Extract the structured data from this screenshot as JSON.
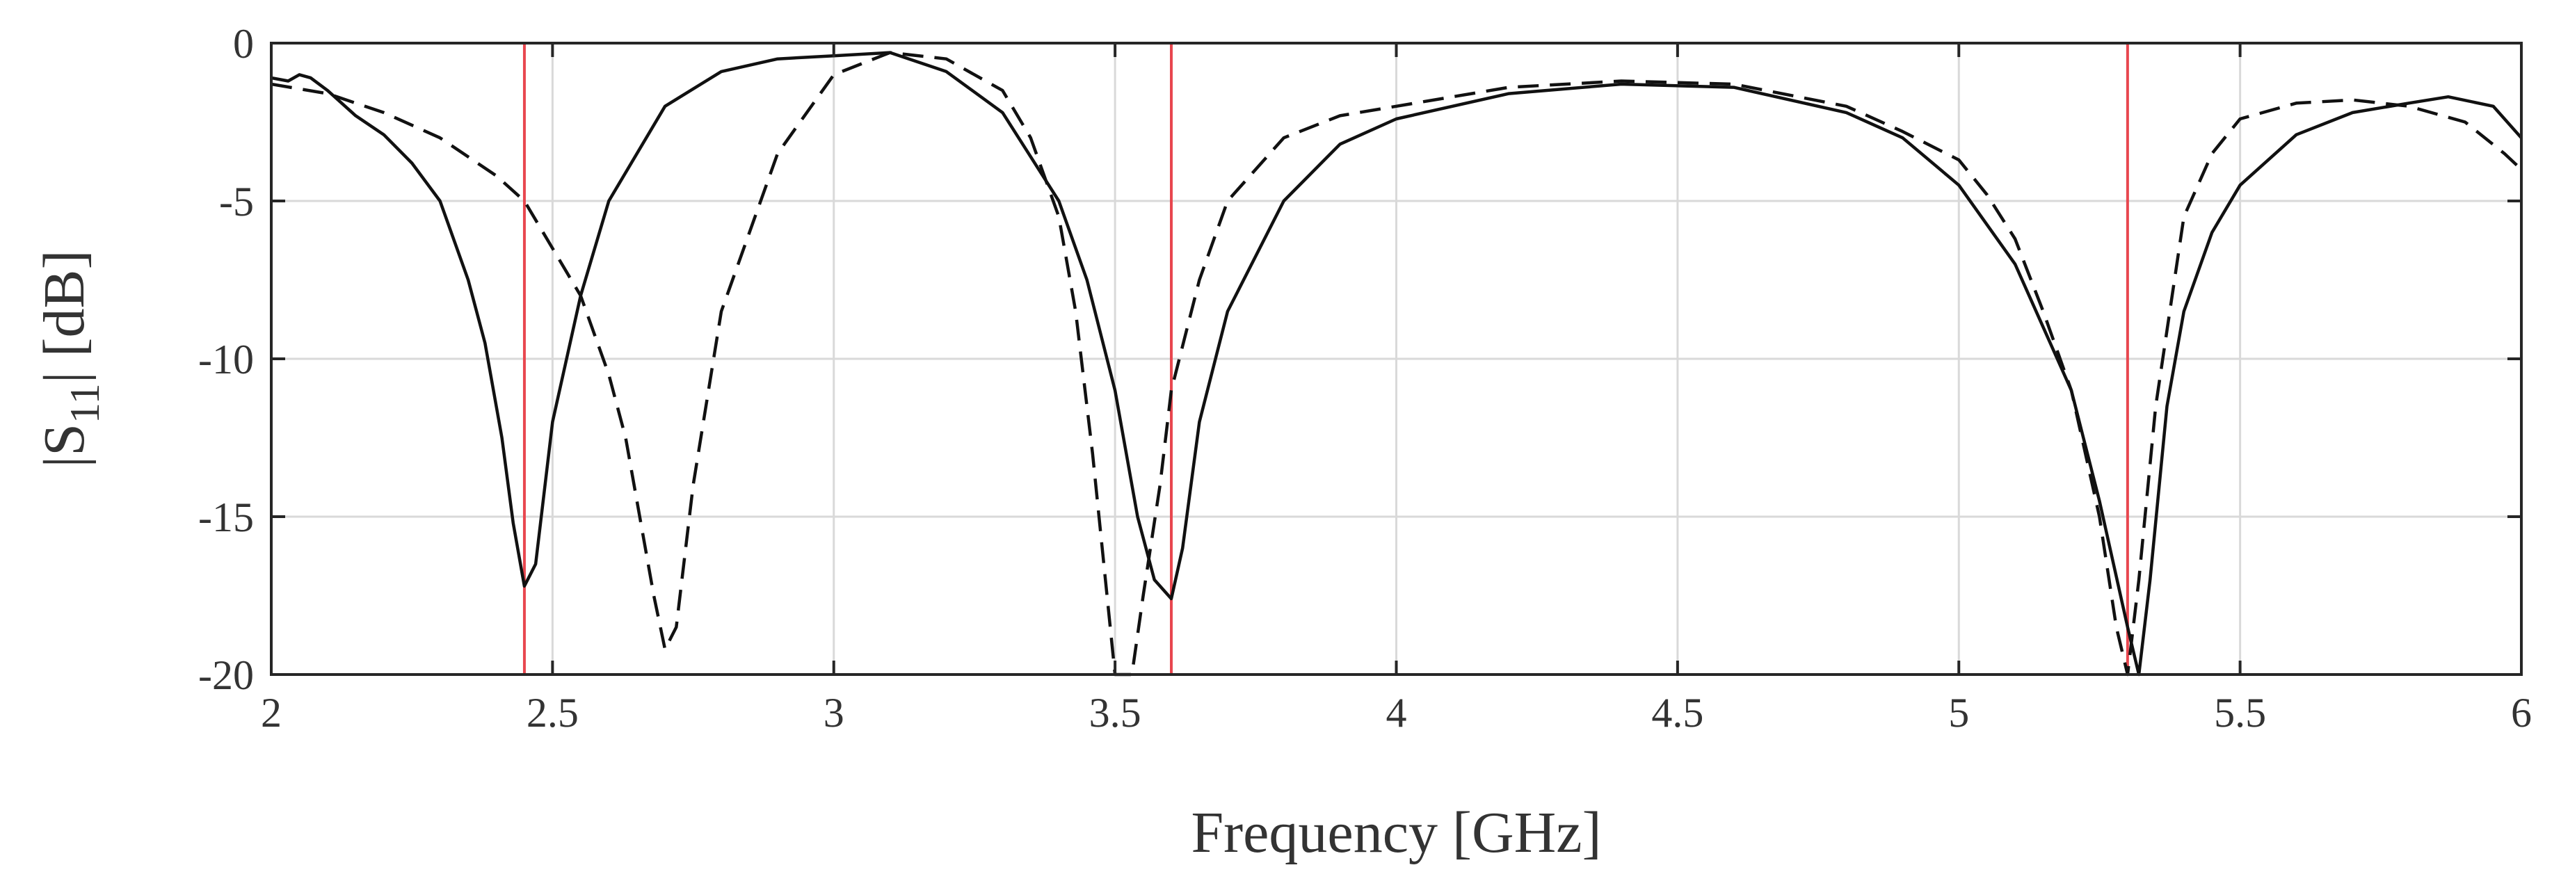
{
  "chart_data": {
    "type": "line",
    "title": "",
    "xlabel": "Frequency [GHz]",
    "ylabel": {
      "pre": "|S",
      "sub": "11",
      "post": "| [dB]"
    },
    "xlim": [
      2,
      6
    ],
    "ylim": [
      -20,
      0
    ],
    "xticks": [
      2,
      2.5,
      3,
      3.5,
      4,
      4.5,
      5,
      5.5,
      6
    ],
    "xtick_labels": [
      "2",
      "2.5",
      "3",
      "3.5",
      "4",
      "4.5",
      "5",
      "5.5",
      "6"
    ],
    "yticks": [
      0,
      -5,
      -10,
      -15,
      -20
    ],
    "ytick_labels": [
      "0",
      "-5",
      "-10",
      "-15",
      "-20"
    ],
    "grid": true,
    "colors": {
      "curve": "#111111",
      "marker": "#e8474f",
      "grid": "#d9d9d9",
      "axis": "#262626"
    },
    "markers_x": [
      2.45,
      3.6,
      5.3
    ],
    "series": [
      {
        "name": "solid",
        "style": "solid",
        "x": [
          2.0,
          2.03,
          2.05,
          2.07,
          2.1,
          2.15,
          2.2,
          2.25,
          2.3,
          2.35,
          2.38,
          2.41,
          2.43,
          2.45,
          2.47,
          2.5,
          2.55,
          2.6,
          2.7,
          2.8,
          2.9,
          3.0,
          3.1,
          3.2,
          3.3,
          3.4,
          3.45,
          3.5,
          3.54,
          3.57,
          3.6,
          3.62,
          3.65,
          3.7,
          3.8,
          3.9,
          4.0,
          4.2,
          4.4,
          4.6,
          4.8,
          4.9,
          5.0,
          5.1,
          5.2,
          5.25,
          5.3,
          5.32,
          5.34,
          5.37,
          5.4,
          5.45,
          5.5,
          5.6,
          5.7,
          5.8,
          5.87,
          5.95,
          6.0
        ],
        "y": [
          -1.1,
          -1.2,
          -1.0,
          -1.1,
          -1.5,
          -2.3,
          -2.9,
          -3.8,
          -5.0,
          -7.5,
          -9.5,
          -12.5,
          -15.2,
          -17.2,
          -16.5,
          -12.0,
          -8.0,
          -5.0,
          -2.0,
          -0.9,
          -0.5,
          -0.4,
          -0.3,
          -0.9,
          -2.2,
          -5.0,
          -7.5,
          -11.0,
          -15.0,
          -17.0,
          -17.6,
          -16.0,
          -12.0,
          -8.5,
          -5.0,
          -3.2,
          -2.4,
          -1.6,
          -1.3,
          -1.4,
          -2.2,
          -3.0,
          -4.5,
          -7.0,
          -11.0,
          -14.5,
          -18.5,
          -20.0,
          -17.0,
          -11.5,
          -8.5,
          -6.0,
          -4.5,
          -2.9,
          -2.2,
          -1.9,
          -1.7,
          -2.0,
          -3.0
        ]
      },
      {
        "name": "dashed",
        "style": "dashed",
        "x": [
          2.0,
          2.1,
          2.2,
          2.3,
          2.4,
          2.45,
          2.5,
          2.55,
          2.6,
          2.63,
          2.66,
          2.68,
          2.7,
          2.72,
          2.75,
          2.8,
          2.9,
          3.0,
          3.1,
          3.2,
          3.3,
          3.35,
          3.4,
          3.43,
          3.46,
          3.48,
          3.5,
          3.53,
          3.55,
          3.58,
          3.6,
          3.65,
          3.7,
          3.8,
          3.9,
          4.0,
          4.2,
          4.4,
          4.6,
          4.8,
          4.9,
          5.0,
          5.05,
          5.1,
          5.15,
          5.2,
          5.25,
          5.28,
          5.3,
          5.32,
          5.35,
          5.4,
          5.45,
          5.5,
          5.6,
          5.7,
          5.8,
          5.9,
          5.97,
          6.0
        ],
        "y": [
          -1.3,
          -1.6,
          -2.2,
          -3.0,
          -4.2,
          -5.0,
          -6.5,
          -8.0,
          -10.5,
          -12.5,
          -15.5,
          -17.5,
          -19.2,
          -18.5,
          -14.0,
          -8.5,
          -3.5,
          -1.0,
          -0.3,
          -0.5,
          -1.5,
          -3.0,
          -5.5,
          -8.5,
          -13.0,
          -16.5,
          -20.0,
          -20.0,
          -17.5,
          -14.0,
          -11.0,
          -7.5,
          -5.0,
          -3.0,
          -2.3,
          -2.0,
          -1.4,
          -1.2,
          -1.3,
          -2.0,
          -2.8,
          -3.7,
          -4.8,
          -6.2,
          -8.5,
          -11.0,
          -15.0,
          -18.5,
          -20.0,
          -17.0,
          -11.5,
          -5.5,
          -3.5,
          -2.4,
          -1.9,
          -1.8,
          -2.0,
          -2.5,
          -3.5,
          -4.0
        ]
      }
    ]
  }
}
